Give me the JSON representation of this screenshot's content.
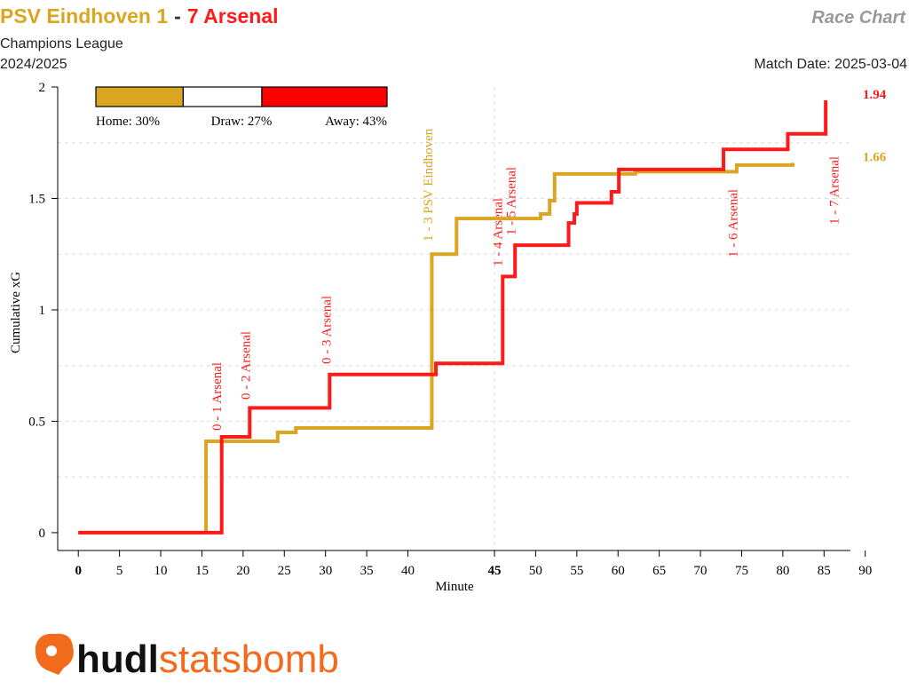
{
  "chart_data": {
    "type": "step",
    "title_parts": [
      "PSV Eindhoven 1",
      "-",
      "7 Arsenal"
    ],
    "title_colors": [
      "#DAA520",
      "#333333",
      "#FF1A1A"
    ],
    "chart_label": "Race Chart",
    "competition": "Champions League",
    "season": "2024/2025",
    "match_date": "Match Date: 2025-03-04",
    "x_label": "Minute",
    "y_label": "Cumulative xG",
    "xlim": [
      -2.5,
      88.2
    ],
    "first_half_end": 50.5,
    "xticks_first_half": [
      0,
      5,
      10,
      15,
      20,
      25,
      30,
      35,
      40
    ],
    "xticks_second_half": [
      45,
      50,
      55,
      60,
      65,
      70,
      75,
      80,
      85,
      90
    ],
    "ylim": [
      -0.08,
      2
    ],
    "yticks": [
      0,
      0.5,
      1,
      1.5,
      2
    ],
    "ygrid": [
      0.25,
      0.5,
      0.75,
      1,
      1.25,
      1.5,
      1.75
    ],
    "probabilities": [
      {
        "label": "Home: 30%",
        "value": 30,
        "color": "#DAA520"
      },
      {
        "label": "Draw: 27%",
        "value": 27,
        "color": "#FFFFFF"
      },
      {
        "label": "Away: 43%",
        "value": 43,
        "color": "#FF0000"
      }
    ],
    "series": [
      {
        "name": "PSV Eindhoven",
        "color": "#DAA520",
        "first_half": {
          "x": [
            0,
            15.5,
            24.2,
            26.4,
            42.9,
            45.9
          ],
          "values": [
            0,
            0.41,
            0.45,
            0.47,
            1.25,
            1.41
          ]
        },
        "second_half": {
          "x": [
            45,
            50.6,
            51.7,
            52.3,
            62.1,
            74.4,
            81.2
          ],
          "values": [
            1.41,
            1.43,
            1.49,
            1.61,
            1.62,
            1.65,
            1.66
          ]
        },
        "end_label": "1.66"
      },
      {
        "name": "Arsenal",
        "color": "#FF1A1A",
        "first_half": {
          "x": [
            0,
            17.4,
            20.8,
            30.5,
            43.4
          ],
          "values": [
            0,
            0.43,
            0.56,
            0.71,
            0.76
          ]
        },
        "second_half": {
          "x": [
            45,
            46.0,
            47.5,
            54.0,
            54.7,
            55.0,
            59.2,
            60.1,
            72.8,
            80.6,
            85.2
          ],
          "values": [
            0.76,
            1.15,
            1.29,
            1.39,
            1.43,
            1.48,
            1.53,
            1.63,
            1.72,
            1.79,
            1.94
          ]
        },
        "end_label": "1.94"
      }
    ],
    "annotations": [
      {
        "text": "0 - 1 Arsenal",
        "minute": 16.8,
        "half": 1,
        "color": "#FF1A1A"
      },
      {
        "text": "0 - 2 Arsenal",
        "minute": 20.3,
        "half": 1,
        "color": "#FF1A1A"
      },
      {
        "text": "0 - 3 Arsenal",
        "minute": 30.1,
        "half": 1,
        "color": "#FF1A1A"
      },
      {
        "text": "1 - 3 PSV Eindhoven",
        "minute": 42.4,
        "half": 1,
        "color": "#DAA520"
      },
      {
        "text": "1 - 4 Arsenal",
        "minute": 45.4,
        "half": 2,
        "color": "#FF1A1A"
      },
      {
        "text": "1 - 5 Arsenal",
        "minute": 47.0,
        "half": 2,
        "color": "#FF1A1A"
      },
      {
        "text": "1 - 6 Arsenal",
        "minute": 73.9,
        "half": 2,
        "color": "#FF1A1A"
      },
      {
        "text": "1 - 7 Arsenal",
        "minute": 86.2,
        "half": 2,
        "color": "#FF1A1A"
      }
    ],
    "logo": {
      "part1": "hudl",
      "part2": "statsbomb"
    }
  }
}
